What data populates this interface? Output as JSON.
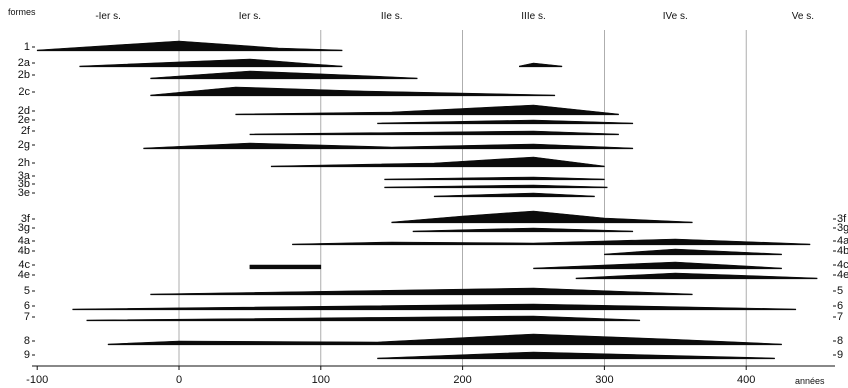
{
  "chart_data": {
    "type": "area",
    "title": "",
    "top_left_label": "formes",
    "x_unit_label": "années",
    "xlim": [
      -100,
      430
    ],
    "x_ticks": [
      -100,
      0,
      100,
      200,
      300,
      400
    ],
    "centuries": [
      {
        "label": "-Ier s.",
        "x": -50
      },
      {
        "label": "Ier s.",
        "x": 50
      },
      {
        "label": "IIe s.",
        "x": 150
      },
      {
        "label": "IIIe s.",
        "x": 250
      },
      {
        "label": "IVe s.",
        "x": 350
      },
      {
        "label": "Ve s.",
        "x": 440
      }
    ],
    "grid_lines_x": [
      0,
      100,
      200,
      300,
      400
    ],
    "series": [
      {
        "name": "1",
        "right": false,
        "points": [
          [
            -100,
            0
          ],
          [
            0,
            9
          ],
          [
            70,
            2
          ],
          [
            115,
            0
          ]
        ]
      },
      {
        "name": "2a",
        "right": false,
        "points": [
          [
            -70,
            0
          ],
          [
            50,
            7
          ],
          [
            95,
            2
          ],
          [
            115,
            0
          ]
        ]
      },
      {
        "name": "2a",
        "right": false,
        "points": [
          [
            240,
            0
          ],
          [
            250,
            3
          ],
          [
            270,
            0
          ]
        ]
      },
      {
        "name": "2b",
        "right": false,
        "points": [
          [
            -20,
            0
          ],
          [
            50,
            7
          ],
          [
            120,
            3
          ],
          [
            168,
            0
          ]
        ]
      },
      {
        "name": "2c",
        "right": false,
        "points": [
          [
            -20,
            0
          ],
          [
            40,
            8
          ],
          [
            130,
            4
          ],
          [
            265,
            0
          ]
        ]
      },
      {
        "name": "2d",
        "right": false,
        "points": [
          [
            40,
            0
          ],
          [
            150,
            2
          ],
          [
            250,
            9
          ],
          [
            310,
            0
          ]
        ]
      },
      {
        "name": "2e",
        "right": false,
        "points": [
          [
            140,
            0
          ],
          [
            250,
            3
          ],
          [
            320,
            0
          ]
        ]
      },
      {
        "name": "2f",
        "right": false,
        "points": [
          [
            50,
            0
          ],
          [
            250,
            3
          ],
          [
            310,
            0
          ]
        ]
      },
      {
        "name": "2g",
        "right": false,
        "points": [
          [
            -25,
            0
          ],
          [
            50,
            5
          ],
          [
            150,
            1
          ],
          [
            250,
            4
          ],
          [
            320,
            0
          ]
        ]
      },
      {
        "name": "2h",
        "right": false,
        "points": [
          [
            65,
            0
          ],
          [
            180,
            3
          ],
          [
            250,
            9
          ],
          [
            300,
            0
          ]
        ]
      },
      {
        "name": "3a",
        "right": false,
        "points": [
          [
            145,
            0
          ],
          [
            250,
            2
          ],
          [
            300,
            0
          ]
        ]
      },
      {
        "name": "3b",
        "right": false,
        "points": [
          [
            145,
            0
          ],
          [
            250,
            2
          ],
          [
            302,
            0
          ]
        ]
      },
      {
        "name": "3e",
        "right": false,
        "points": [
          [
            180,
            0
          ],
          [
            250,
            3
          ],
          [
            293,
            0
          ]
        ]
      },
      {
        "name": "3f",
        "right": true,
        "points": [
          [
            150,
            0
          ],
          [
            200,
            6
          ],
          [
            250,
            11
          ],
          [
            300,
            4
          ],
          [
            362,
            0
          ]
        ]
      },
      {
        "name": "3g",
        "right": true,
        "points": [
          [
            165,
            0
          ],
          [
            250,
            3
          ],
          [
            320,
            0
          ]
        ]
      },
      {
        "name": "4a",
        "right": true,
        "points": [
          [
            80,
            0
          ],
          [
            150,
            2
          ],
          [
            250,
            1
          ],
          [
            350,
            5
          ],
          [
            445,
            0
          ]
        ]
      },
      {
        "name": "4b",
        "right": true,
        "points": [
          [
            300,
            0
          ],
          [
            350,
            5
          ],
          [
            425,
            0
          ]
        ]
      },
      {
        "name": "4c",
        "right": true,
        "points": [
          [
            50,
            0
          ],
          [
            50,
            3
          ],
          [
            100,
            3
          ],
          [
            100,
            0
          ]
        ]
      },
      {
        "name": "4c",
        "right": true,
        "points": [
          [
            250,
            0
          ],
          [
            350,
            6
          ],
          [
            425,
            0
          ]
        ]
      },
      {
        "name": "4e",
        "right": true,
        "points": [
          [
            280,
            0
          ],
          [
            350,
            5
          ],
          [
            450,
            0
          ]
        ]
      },
      {
        "name": "5",
        "right": true,
        "points": [
          [
            -20,
            0
          ],
          [
            250,
            6
          ],
          [
            362,
            0
          ]
        ]
      },
      {
        "name": "6",
        "right": true,
        "points": [
          [
            -75,
            0
          ],
          [
            250,
            5
          ],
          [
            435,
            0
          ]
        ]
      },
      {
        "name": "7",
        "right": true,
        "points": [
          [
            -65,
            0
          ],
          [
            250,
            4
          ],
          [
            325,
            0
          ]
        ]
      },
      {
        "name": "8",
        "right": true,
        "points": [
          [
            -50,
            0
          ],
          [
            0,
            3
          ],
          [
            140,
            2
          ],
          [
            250,
            10
          ],
          [
            345,
            5
          ],
          [
            425,
            0
          ]
        ]
      },
      {
        "name": "9",
        "right": true,
        "points": [
          [
            140,
            0
          ],
          [
            250,
            6
          ],
          [
            420,
            0
          ]
        ]
      }
    ]
  }
}
